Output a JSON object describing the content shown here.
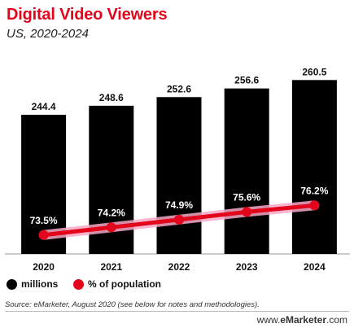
{
  "header": {
    "title": "Digital Video Viewers",
    "subtitle": "US, 2020-2024"
  },
  "legend": {
    "millions": "millions",
    "percent": "% of population"
  },
  "footer": {
    "source": "Source: eMarketer, August 2020 (see below for notes and methodologies).",
    "brand_prefix": "www.",
    "brand_name": "eMarketer",
    "brand_suffix": ".com"
  },
  "colors": {
    "bars": "#000000",
    "line": "#e3051b",
    "title": "#e3051b"
  },
  "chart_data": {
    "type": "bar",
    "title": "Digital Video Viewers",
    "subtitle": "US, 2020-2024",
    "categories": [
      "2020",
      "2021",
      "2022",
      "2023",
      "2024"
    ],
    "series": [
      {
        "name": "millions",
        "type": "bar",
        "values": [
          244.4,
          248.6,
          252.6,
          256.6,
          260.5
        ],
        "labels": [
          "244.4",
          "248.6",
          "252.6",
          "256.6",
          "260.5"
        ]
      },
      {
        "name": "% of population",
        "type": "line",
        "values": [
          73.5,
          74.2,
          74.9,
          75.6,
          76.2
        ],
        "labels": [
          "73.5%",
          "74.2%",
          "74.9%",
          "75.6%",
          "76.2%"
        ]
      }
    ],
    "legend": "bottom-left",
    "grid": false
  }
}
